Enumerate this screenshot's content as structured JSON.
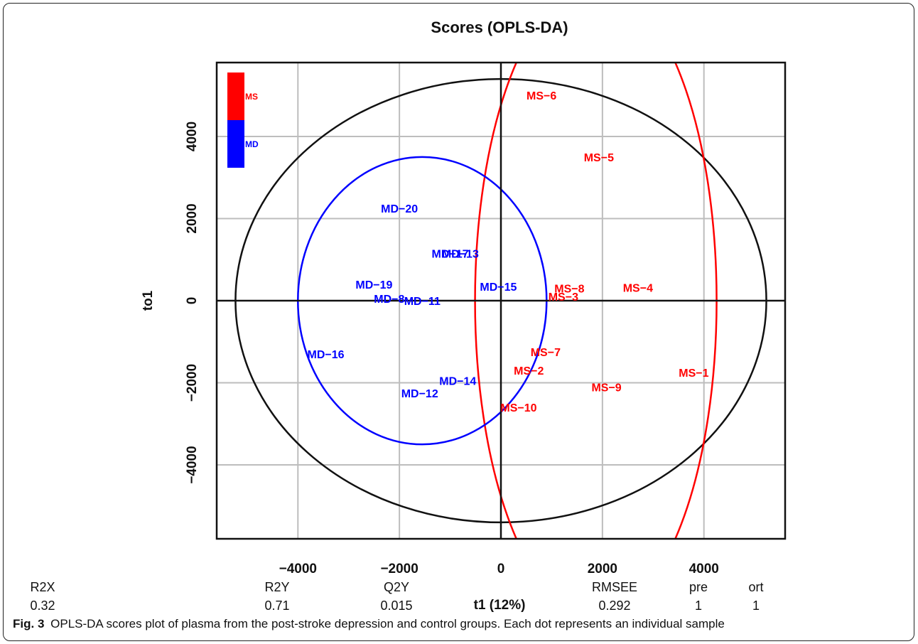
{
  "caption": {
    "label": "Fig. 3",
    "text": "OPLS-DA scores plot of plasma from the post-stroke depression and control groups. Each dot represents an individual sample"
  },
  "chart_data": {
    "type": "scatter",
    "title": "Scores (OPLS-DA)",
    "xlabel": "t1 (12%)",
    "ylabel": "to1",
    "xlim": [
      -5600,
      5600
    ],
    "ylim": [
      -5800,
      5800
    ],
    "x_ticks": [
      -4000,
      -2000,
      0,
      2000,
      4000
    ],
    "y_ticks": [
      -4000,
      -2000,
      0,
      2000,
      4000
    ],
    "x_tick_labels": [
      "−4000",
      "−2000",
      "0",
      "2000",
      "4000"
    ],
    "y_tick_labels": [
      "−4000",
      "−2000",
      "0",
      "2000",
      "4000"
    ],
    "grid": true,
    "legend": {
      "position": "top-left",
      "entries": [
        {
          "name": "MS",
          "color": "#ff0000"
        },
        {
          "name": "MD",
          "color": "#0000ff"
        }
      ]
    },
    "series": [
      {
        "name": "MS",
        "color": "#ff0000",
        "ellipse": {
          "cx": 1870,
          "cy": 0,
          "rx": 2380,
          "ry": 7700
        },
        "points": [
          {
            "label": "MS−1",
            "x": 3800,
            "y": -1750
          },
          {
            "label": "MS−2",
            "x": 550,
            "y": -1700
          },
          {
            "label": "MS−3",
            "x": 1230,
            "y": 100
          },
          {
            "label": "MS−4",
            "x": 2700,
            "y": 320
          },
          {
            "label": "MS−5",
            "x": 1930,
            "y": 3500
          },
          {
            "label": "MS−6",
            "x": 800,
            "y": 5000
          },
          {
            "label": "MS−7",
            "x": 880,
            "y": -1250
          },
          {
            "label": "MS−8",
            "x": 1350,
            "y": 300
          },
          {
            "label": "MS−9",
            "x": 2080,
            "y": -2100
          },
          {
            "label": "MS−10",
            "x": 350,
            "y": -2600
          }
        ]
      },
      {
        "name": "MD",
        "color": "#0000ff",
        "ellipse": {
          "cx": -1550,
          "cy": 0,
          "rx": 2450,
          "ry": 3500
        },
        "points": [
          {
            "label": "MD−12",
            "x": -1600,
            "y": -2250
          },
          {
            "label": "MD−14",
            "x": -850,
            "y": -1950
          },
          {
            "label": "MD−11",
            "x": -1550,
            "y": 0
          },
          {
            "label": "MD−8",
            "x": -2200,
            "y": 50
          },
          {
            "label": "MD−15",
            "x": -50,
            "y": 350
          },
          {
            "label": "MD−16",
            "x": -3450,
            "y": -1300
          },
          {
            "label": "MD−17",
            "x": -1000,
            "y": 1150
          },
          {
            "label": "MD−13",
            "x": -800,
            "y": 1150
          },
          {
            "label": "MD−19",
            "x": -2500,
            "y": 400
          },
          {
            "label": "MD−20",
            "x": -2000,
            "y": 2250
          }
        ]
      }
    ],
    "reference_ellipse": {
      "cx": 0,
      "cy": 0,
      "rx": 5230,
      "ry": 5400
    },
    "summary": [
      {
        "name": "R2X",
        "value": "0.32"
      },
      {
        "name": "R2Y",
        "value": "0.71"
      },
      {
        "name": "Q2Y",
        "value": "0.015"
      },
      {
        "name": "RMSEE",
        "value": "0.292"
      },
      {
        "name": "pre",
        "value": "1"
      },
      {
        "name": "ort",
        "value": "1"
      }
    ]
  }
}
